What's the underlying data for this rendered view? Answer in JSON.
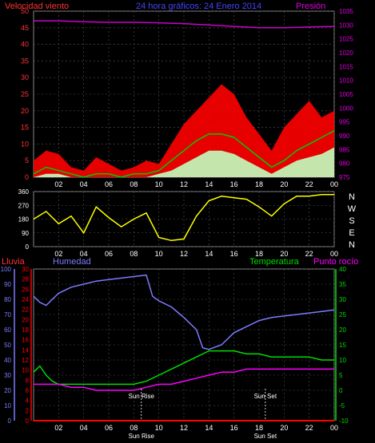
{
  "header": {
    "title_left": "Velocidad viento",
    "title_center": "24 hora gráficos: 24 Enero 2014",
    "title_right": "Presión"
  },
  "colors": {
    "wind_gust": "#ff0000",
    "wind_avg": "#00cc00",
    "wind_min": "#c0ffc0",
    "pressure": "#cc00cc",
    "direction": "#ffff00",
    "humidity": "#7b7bff",
    "temperature": "#00dd00",
    "dewpoint": "#ff00ff",
    "rain": "#ff0000",
    "axis_left_top": "#ff3333",
    "axis_right_top": "#dd00dd",
    "grid": "#555555"
  },
  "chart_data": [
    {
      "name": "wind_pressure",
      "type": "line",
      "title": "24 hora gráficos: 24 Enero 2014",
      "ylabel_left": "Velocidad viento",
      "ylabel_right": "Presión",
      "ylim_left": [
        0,
        50
      ],
      "yticks_left": [
        "0",
        "5",
        "10",
        "15",
        "20",
        "25",
        "30",
        "35",
        "40",
        "45",
        "50"
      ],
      "ylim_right": [
        975,
        1035
      ],
      "yticks_right": [
        "975",
        "980",
        "985",
        "990",
        "995",
        "1000",
        "1005",
        "1010",
        "1015",
        "1020",
        "1025",
        "1030",
        "1035"
      ],
      "x_ticks": [
        "02",
        "04",
        "06",
        "08",
        "10",
        "12",
        "14",
        "16",
        "18",
        "20",
        "22",
        "00"
      ],
      "grid": true,
      "series": [
        {
          "key": "pressure",
          "x": [
            0,
            2,
            4,
            6,
            8,
            10,
            12,
            14,
            16,
            18,
            20,
            22,
            24
          ],
          "values": [
            1031.5,
            1031.5,
            1031.2,
            1031,
            1031,
            1030.8,
            1030.5,
            1030,
            1029.5,
            1029,
            1029,
            1029.3,
            1029.5
          ]
        },
        {
          "key": "gust",
          "x": [
            0,
            1,
            2,
            3,
            4,
            5,
            6,
            7,
            8,
            9,
            10,
            11,
            12,
            13,
            14,
            15,
            16,
            17,
            18,
            19,
            20,
            21,
            22,
            23,
            24
          ],
          "values": [
            5,
            8,
            7,
            3,
            2,
            6,
            4,
            2,
            3,
            5,
            4,
            10,
            16,
            20,
            24,
            28,
            25,
            18,
            13,
            8,
            15,
            19,
            23,
            18,
            20
          ]
        },
        {
          "key": "avg",
          "x": [
            0,
            1,
            2,
            3,
            4,
            5,
            6,
            7,
            8,
            9,
            10,
            11,
            12,
            13,
            14,
            15,
            16,
            17,
            18,
            19,
            20,
            21,
            22,
            23,
            24
          ],
          "values": [
            1,
            3,
            2,
            1,
            0,
            1,
            1,
            0,
            1,
            1,
            2,
            5,
            8,
            11,
            13,
            13,
            12,
            9,
            6,
            3,
            5,
            8,
            10,
            12,
            14
          ]
        },
        {
          "key": "min",
          "x": [
            0,
            1,
            2,
            3,
            4,
            5,
            6,
            7,
            8,
            9,
            10,
            11,
            12,
            13,
            14,
            15,
            16,
            17,
            18,
            19,
            20,
            21,
            22,
            23,
            24
          ],
          "values": [
            0,
            1,
            1,
            0,
            0,
            0,
            0,
            0,
            0,
            0,
            1,
            2,
            4,
            6,
            8,
            8,
            7,
            5,
            3,
            1,
            3,
            5,
            6,
            7,
            9
          ]
        }
      ]
    },
    {
      "name": "wind_direction",
      "type": "line",
      "ylim": [
        0,
        360
      ],
      "yticks": [
        "0",
        "90",
        "180",
        "270",
        "360"
      ],
      "compass": [
        "N",
        "W",
        "S",
        "E",
        "N"
      ],
      "x_ticks": [
        "02",
        "04",
        "06",
        "08",
        "10",
        "12",
        "14",
        "16",
        "18",
        "20",
        "22",
        "00"
      ],
      "grid": true,
      "series": [
        {
          "key": "direction",
          "x": [
            0,
            1,
            2,
            3,
            4,
            5,
            6,
            7,
            8,
            9,
            10,
            11,
            12,
            13,
            14,
            15,
            16,
            17,
            18,
            19,
            20,
            21,
            22,
            23,
            24
          ],
          "values": [
            180,
            230,
            150,
            200,
            90,
            260,
            190,
            130,
            180,
            220,
            60,
            40,
            50,
            200,
            300,
            330,
            320,
            310,
            260,
            200,
            280,
            330,
            330,
            340,
            340
          ]
        }
      ]
    },
    {
      "name": "humidity_temperature",
      "type": "line",
      "labels": {
        "rain": "Lluvia",
        "humidity": "Humedad",
        "temperature": "Temperatura",
        "dewpoint": "Punto rocío"
      },
      "ylim_humidity": [
        0,
        100
      ],
      "yticks_humidity": [
        "0",
        "10",
        "20",
        "30",
        "40",
        "50",
        "60",
        "70",
        "80",
        "90",
        "100"
      ],
      "ylim_rain": [
        0,
        30
      ],
      "yticks_rain": [
        "0",
        "2",
        "4",
        "6",
        "8",
        "10",
        "12",
        "14",
        "16",
        "18",
        "20",
        "22",
        "24",
        "26",
        "28",
        "30"
      ],
      "ylim_temp": [
        -10,
        40
      ],
      "yticks_temp": [
        "-10",
        "-5",
        "0",
        "5",
        "10",
        "15",
        "20",
        "25",
        "30",
        "35",
        "40"
      ],
      "x_ticks": [
        "02",
        "04",
        "06",
        "08",
        "10",
        "12",
        "14",
        "16",
        "18",
        "20",
        "22",
        "00"
      ],
      "annotations": [
        {
          "label": "Sun Rise",
          "x": 8.6
        },
        {
          "label": "Sun Set",
          "x": 18.5
        }
      ],
      "bottom_markers": [
        "Sun Rise",
        "Sun Set"
      ],
      "grid": true,
      "series": [
        {
          "key": "humidity",
          "x": [
            0,
            0.5,
            1,
            1.5,
            2,
            3,
            4,
            5,
            6,
            7,
            8,
            9,
            9.5,
            10,
            11,
            12,
            13,
            13.5,
            14,
            15,
            16,
            17,
            18,
            19,
            20,
            21,
            22,
            23,
            24
          ],
          "values": [
            82,
            78,
            76,
            80,
            84,
            88,
            90,
            92,
            93,
            94,
            95,
            96,
            82,
            79,
            75,
            68,
            60,
            48,
            47,
            50,
            58,
            62,
            66,
            68,
            69,
            70,
            71,
            72,
            73
          ]
        },
        {
          "key": "temperature",
          "x": [
            0,
            0.5,
            1,
            1.5,
            2,
            3,
            4,
            5,
            6,
            7,
            8,
            9,
            10,
            11,
            12,
            13,
            14,
            15,
            16,
            17,
            18,
            19,
            20,
            21,
            22,
            23,
            24
          ],
          "values": [
            6,
            8,
            5,
            3,
            2,
            2,
            2,
            2,
            2,
            2,
            2,
            3,
            5,
            7,
            9,
            11,
            13,
            13,
            13,
            12,
            12,
            11,
            11,
            11,
            11,
            10,
            10
          ]
        },
        {
          "key": "dewpoint",
          "x": [
            0,
            1,
            2,
            3,
            4,
            5,
            6,
            7,
            8,
            9,
            10,
            11,
            12,
            13,
            14,
            15,
            16,
            17,
            18,
            19,
            20,
            21,
            22,
            23,
            24
          ],
          "values": [
            2,
            2,
            2,
            1,
            1,
            0,
            0,
            0,
            0,
            1,
            2,
            2,
            3,
            4,
            5,
            6,
            6,
            7,
            7,
            7,
            7,
            7,
            7,
            7,
            7
          ]
        },
        {
          "key": "rain",
          "x": [
            0,
            24
          ],
          "values": [
            0,
            0
          ]
        }
      ]
    }
  ]
}
